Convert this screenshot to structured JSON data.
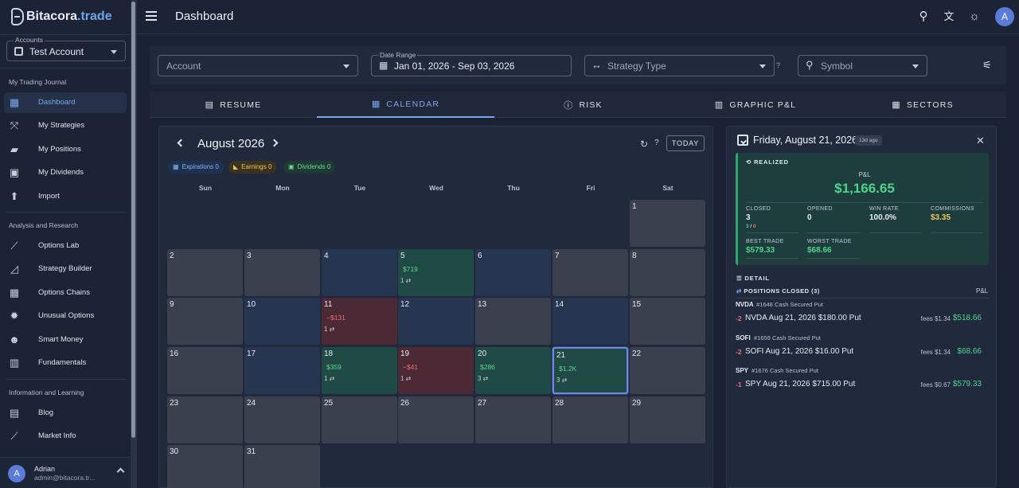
{
  "app": {
    "brand": "Bitacora",
    "brand_tld": ".trade"
  },
  "sidebar": {
    "accounts_label": "Accounts",
    "account_value": "Test Account",
    "sections": [
      {
        "title": "My Trading Journal",
        "items": [
          {
            "label": "Dashboard",
            "icon": "dashboard-icon",
            "active": true
          },
          {
            "label": "My Strategies",
            "icon": "strategies-icon"
          },
          {
            "label": "My Positions",
            "icon": "briefcase-icon"
          },
          {
            "label": "My Dividends",
            "icon": "money-icon"
          },
          {
            "label": "Import",
            "icon": "upload-icon"
          }
        ]
      },
      {
        "title": "Analysis and Research",
        "items": [
          {
            "label": "Options Lab",
            "icon": "line-chart-icon"
          },
          {
            "label": "Strategy Builder",
            "icon": "area-chart-icon"
          },
          {
            "label": "Options Chains",
            "icon": "table-icon"
          },
          {
            "label": "Unusual Options",
            "icon": "alert-badge-icon"
          },
          {
            "label": "Smart Money",
            "icon": "people-icon"
          },
          {
            "label": "Fundamentals",
            "icon": "bar-chart-icon"
          }
        ]
      },
      {
        "title": "Information and Learning",
        "items": [
          {
            "label": "Blog",
            "icon": "article-icon"
          },
          {
            "label": "Market Info",
            "icon": "trend-icon"
          }
        ]
      }
    ],
    "user": {
      "initial": "A",
      "name": "Adrian",
      "email": "admin@bitacora.tr..."
    }
  },
  "topbar": {
    "title": "Dashboard",
    "avatar_initial": "A"
  },
  "filters": {
    "account_placeholder": "Account",
    "date_range_label": "Date Range",
    "date_range_value": "Jan 01, 2026 - Sep 03, 2026",
    "strategy_placeholder": "Strategy Type",
    "symbol_placeholder": "Symbol"
  },
  "tabs": [
    {
      "label": "RESUME",
      "icon": "document-icon"
    },
    {
      "label": "CALENDAR",
      "icon": "calendar-icon",
      "active": true
    },
    {
      "label": "RISK",
      "icon": "info-circle-icon"
    },
    {
      "label": "GRAPHIC P&L",
      "icon": "chart-icon"
    },
    {
      "label": "SECTORS",
      "icon": "grid-icon"
    }
  ],
  "calendar": {
    "month": "August 2026",
    "today_label": "TODAY",
    "chips": {
      "expirations": {
        "label": "Expirations",
        "count": "0"
      },
      "earnings": {
        "label": "Earnings",
        "count": "0"
      },
      "dividends": {
        "label": "Dividends",
        "count": "0"
      }
    },
    "weekdays": [
      "Sun",
      "Mon",
      "Tue",
      "Wed",
      "Thu",
      "Fri",
      "Sat"
    ],
    "days": [
      {
        "day": "1",
        "tone": "gray"
      },
      {
        "day": "2",
        "tone": "gray"
      },
      {
        "day": "3",
        "tone": "gray"
      },
      {
        "day": "4",
        "tone": "blue"
      },
      {
        "day": "5",
        "tone": "green",
        "pl": "$719",
        "count": "1"
      },
      {
        "day": "6",
        "tone": "blue"
      },
      {
        "day": "7",
        "tone": "gray"
      },
      {
        "day": "8",
        "tone": "gray"
      },
      {
        "day": "9",
        "tone": "gray"
      },
      {
        "day": "10",
        "tone": "blue"
      },
      {
        "day": "11",
        "tone": "red",
        "pl": "−$131",
        "count": "1"
      },
      {
        "day": "12",
        "tone": "blue"
      },
      {
        "day": "13",
        "tone": "gray"
      },
      {
        "day": "14",
        "tone": "blue"
      },
      {
        "day": "15",
        "tone": "gray"
      },
      {
        "day": "16",
        "tone": "gray"
      },
      {
        "day": "17",
        "tone": "blue"
      },
      {
        "day": "18",
        "tone": "green",
        "pl": "$359",
        "count": "1"
      },
      {
        "day": "19",
        "tone": "red",
        "pl": "−$41",
        "count": "1"
      },
      {
        "day": "20",
        "tone": "green",
        "pl": "$286",
        "count": "3"
      },
      {
        "day": "21",
        "tone": "green",
        "pl": "$1.2K",
        "count": "3",
        "selected": true
      },
      {
        "day": "22",
        "tone": "gray"
      },
      {
        "day": "23",
        "tone": "gray"
      },
      {
        "day": "24",
        "tone": "gray"
      },
      {
        "day": "25",
        "tone": "gray"
      },
      {
        "day": "26",
        "tone": "gray"
      },
      {
        "day": "27",
        "tone": "gray"
      },
      {
        "day": "28",
        "tone": "gray"
      },
      {
        "day": "29",
        "tone": "gray"
      },
      {
        "day": "30",
        "tone": "gray"
      },
      {
        "day": "31",
        "tone": "gray"
      }
    ]
  },
  "detail": {
    "date": "Friday, August 21, 2026",
    "ago": "13d ago",
    "realized": {
      "title": "REALIZED",
      "pl_label": "P&L",
      "pl_value": "$1,166.65",
      "closed_label": "CLOSED",
      "closed_value": "3",
      "closed_split_win": "3",
      "closed_split_sep": " / ",
      "closed_split_loss": "0",
      "opened_label": "OPENED",
      "opened_value": "0",
      "winrate_label": "WIN RATE",
      "winrate_value": "100.0%",
      "commissions_label": "COMMISSIONS",
      "commissions_value": "$3.35",
      "best_label": "BEST TRADE",
      "best_value": "$579.33",
      "worst_label": "WORST TRADE",
      "worst_value": "$68.66"
    },
    "detail_title": "DETAIL",
    "positions_title": "POSITIONS CLOSED (3)",
    "pl_header": "P&L",
    "trades": [
      {
        "symbol": "NVDA",
        "id": "#1648",
        "strategy": "Cash Secured Put",
        "qty": "-2",
        "desc": "NVDA Aug 21, 2026 $180.00 Put",
        "fees_label": "fees",
        "fees": "$1.34",
        "pl": "$518.66"
      },
      {
        "symbol": "SOFI",
        "id": "#1659",
        "strategy": "Cash Secured Put",
        "qty": "-2",
        "desc": "SOFI Aug 21, 2026 $16.00 Put",
        "fees_label": "fees",
        "fees": "$1.34",
        "pl": "$68.66"
      },
      {
        "symbol": "SPY",
        "id": "#1676",
        "strategy": "Cash Secured Put",
        "qty": "-1",
        "desc": "SPY Aug 21, 2026 $715.00 Put",
        "fees_label": "fees",
        "fees": "$0.67",
        "pl": "$579.33"
      }
    ]
  },
  "colors": {
    "accent": "#7aa7ef",
    "positive": "#4fd48a",
    "negative": "#ee6b70"
  }
}
